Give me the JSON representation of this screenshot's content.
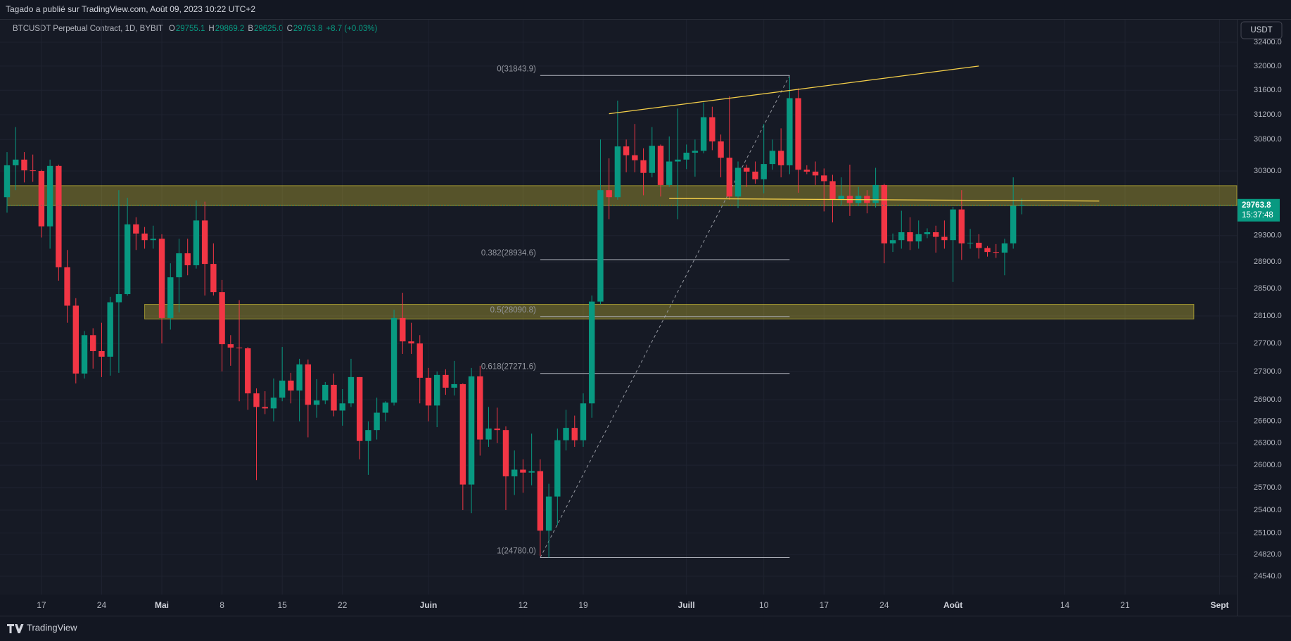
{
  "header": {
    "publisher": "Tagado a publié sur TradingView.com, Août 09, 2023 10:22 UTC+2",
    "symbol": "BTCUSDT Perpetual Contract, 1D, BYBIT",
    "ohlc": [
      {
        "key": "O",
        "value": "29755.1"
      },
      {
        "key": "H",
        "value": "29869.2"
      },
      {
        "key": "B",
        "value": "29625.0"
      },
      {
        "key": "C",
        "value": "29763.8"
      }
    ],
    "change": "+8.7 (+0.03%)",
    "currency": "USDT"
  },
  "footer": {
    "brand": "TradingView"
  },
  "chart_data": {
    "type": "candlestick",
    "log_scale": true,
    "grid": true,
    "up_color": "#089981",
    "down_color": "#f23645",
    "countdown": "15:37:48",
    "xlim": [
      "04-13",
      "09-03"
    ],
    "ylim": [
      24308,
      32781
    ],
    "yticks": [
      {
        "value": 32400,
        "label": "32400.0"
      },
      {
        "value": 32000,
        "label": "32000.0"
      },
      {
        "value": 31600,
        "label": "31600.0"
      },
      {
        "value": 31200,
        "label": "31200.0"
      },
      {
        "value": 30800,
        "label": "30800.0"
      },
      {
        "value": 30300,
        "label": "30300.0"
      },
      {
        "value": 29300,
        "label": "29300.0"
      },
      {
        "value": 28900,
        "label": "28900.0"
      },
      {
        "value": 28500,
        "label": "28500.0"
      },
      {
        "value": 28100,
        "label": "28100.0"
      },
      {
        "value": 27700,
        "label": "27700.0"
      },
      {
        "value": 27300,
        "label": "27300.0"
      },
      {
        "value": 26900,
        "label": "26900.0"
      },
      {
        "value": 26600,
        "label": "26600.0"
      },
      {
        "value": 26300,
        "label": "26300.0"
      },
      {
        "value": 26000,
        "label": "26000.0"
      },
      {
        "value": 25700,
        "label": "25700.0"
      },
      {
        "value": 25400,
        "label": "25400.0"
      },
      {
        "value": 25100,
        "label": "25100.0"
      },
      {
        "value": 24820,
        "label": "24820.0"
      },
      {
        "value": 24540,
        "label": "24540.0"
      }
    ],
    "xticks": [
      {
        "value": "04-17",
        "label": "17"
      },
      {
        "value": "04-24",
        "label": "24"
      },
      {
        "value": "05-01",
        "label": "Mai"
      },
      {
        "value": "05-08",
        "label": "8"
      },
      {
        "value": "05-15",
        "label": "15"
      },
      {
        "value": "05-22",
        "label": "22"
      },
      {
        "value": "06-01",
        "label": "Juin"
      },
      {
        "value": "06-12",
        "label": "12"
      },
      {
        "value": "06-19",
        "label": "19"
      },
      {
        "value": "07-01",
        "label": "Juill"
      },
      {
        "value": "07-10",
        "label": "10"
      },
      {
        "value": "07-17",
        "label": "17"
      },
      {
        "value": "07-24",
        "label": "24"
      },
      {
        "value": "08-01",
        "label": "Août"
      },
      {
        "value": "08-14",
        "label": "14"
      },
      {
        "value": "08-21",
        "label": "21"
      },
      {
        "value": "09-01",
        "label": "Sept"
      }
    ],
    "x": [
      "04-13",
      "04-14",
      "04-15",
      "04-16",
      "04-17",
      "04-18",
      "04-19",
      "04-20",
      "04-21",
      "04-22",
      "04-23",
      "04-24",
      "04-25",
      "04-26",
      "04-27",
      "04-28",
      "04-29",
      "04-30",
      "05-01",
      "05-02",
      "05-03",
      "05-04",
      "05-05",
      "05-06",
      "05-07",
      "05-08",
      "05-09",
      "05-10",
      "05-11",
      "05-12",
      "05-13",
      "05-14",
      "05-15",
      "05-16",
      "05-17",
      "05-18",
      "05-19",
      "05-20",
      "05-21",
      "05-22",
      "05-23",
      "05-24",
      "05-25",
      "05-26",
      "05-27",
      "05-28",
      "05-29",
      "05-30",
      "05-31",
      "06-01",
      "06-02",
      "06-03",
      "06-04",
      "06-05",
      "06-06",
      "06-07",
      "06-08",
      "06-09",
      "06-10",
      "06-11",
      "06-12",
      "06-13",
      "06-14",
      "06-15",
      "06-16",
      "06-17",
      "06-18",
      "06-19",
      "06-20",
      "06-21",
      "06-22",
      "06-23",
      "06-24",
      "06-25",
      "06-26",
      "06-27",
      "06-28",
      "06-29",
      "06-30",
      "07-01",
      "07-02",
      "07-03",
      "07-04",
      "07-05",
      "07-06",
      "07-07",
      "07-08",
      "07-09",
      "07-10",
      "07-11",
      "07-12",
      "07-13",
      "07-14",
      "07-15",
      "07-16",
      "07-17",
      "07-18",
      "07-19",
      "07-20",
      "07-21",
      "07-22",
      "07-23",
      "07-24",
      "07-25",
      "07-26",
      "07-27",
      "07-28",
      "07-29",
      "07-30",
      "07-31",
      "08-01",
      "08-02",
      "08-03",
      "08-04",
      "08-05",
      "08-06",
      "08-07",
      "08-08",
      "08-09"
    ],
    "open": [
      29890,
      30390,
      30480,
      30310,
      30300,
      29440,
      30380,
      28820,
      28250,
      27270,
      27820,
      27590,
      27510,
      28300,
      28420,
      29470,
      29330,
      29230,
      29250,
      28070,
      28670,
      29030,
      28850,
      29530,
      28870,
      28450,
      27690,
      27640,
      27630,
      26990,
      26800,
      26780,
      26930,
      27170,
      27030,
      27400,
      26830,
      26890,
      27110,
      26750,
      26850,
      27220,
      26330,
      26480,
      26720,
      26860,
      28070,
      27730,
      27700,
      27210,
      26820,
      27250,
      27070,
      27120,
      25740,
      27230,
      26350,
      26500,
      26480,
      25850,
      25940,
      25900,
      25920,
      25130,
      25580,
      26340,
      26510,
      26340,
      26850,
      28310,
      30000,
      29890,
      30690,
      30550,
      30470,
      30270,
      30700,
      30080,
      30450,
      30480,
      30590,
      30620,
      31160,
      30770,
      30510,
      29900,
      30350,
      30290,
      30170,
      30410,
      30620,
      30390,
      31470,
      30320,
      30290,
      30230,
      30140,
      29860,
      29910,
      29800,
      29910,
      29800,
      30080,
      29180,
      29230,
      29350,
      29210,
      29320,
      29350,
      29280,
      29230,
      29700,
      29180,
      29190,
      29110,
      29050,
      29040,
      29180,
      29755.1
    ],
    "high": [
      30600,
      31000,
      30600,
      30560,
      30320,
      30480,
      30400,
      29080,
      28360,
      27880,
      27920,
      28000,
      28380,
      30000,
      29880,
      29580,
      29430,
      29450,
      29320,
      28880,
      29250,
      29250,
      29840,
      29820,
      29180,
      28630,
      27820,
      28330,
      27650,
      27060,
      27020,
      27200,
      27650,
      27280,
      27480,
      27470,
      27190,
      27150,
      27270,
      27050,
      27480,
      27220,
      26600,
      26930,
      26880,
      28190,
      28440,
      28000,
      27820,
      27350,
      27300,
      27330,
      27450,
      27130,
      27350,
      27380,
      26800,
      26790,
      26530,
      26200,
      26080,
      26430,
      26080,
      25750,
      26500,
      26760,
      26680,
      26990,
      28400,
      30800,
      30500,
      31430,
      30800,
      31050,
      30660,
      31000,
      30720,
      30850,
      31300,
      30720,
      30800,
      31400,
      31330,
      30880,
      31500,
      30450,
      30400,
      30450,
      31050,
      30800,
      30980,
      31820,
      31630,
      30390,
      30450,
      30340,
      30240,
      30200,
      30400,
      30050,
      30000,
      30350,
      30100,
      29330,
      29680,
      29580,
      29530,
      29410,
      29450,
      29530,
      29740,
      30000,
      29400,
      29320,
      29140,
      29170,
      29250,
      30200,
      29869.2
    ],
    "low": [
      29650,
      30000,
      30120,
      30130,
      29270,
      29100,
      28620,
      28000,
      27130,
      27200,
      27340,
      27220,
      27240,
      27280,
      28400,
      29080,
      29100,
      29100,
      27700,
      27900,
      28150,
      28700,
      28800,
      28400,
      28400,
      27300,
      27380,
      26880,
      26760,
      25800,
      26700,
      26600,
      26880,
      26850,
      26600,
      26380,
      26650,
      26840,
      26670,
      26540,
      26800,
      26080,
      25870,
      26350,
      26600,
      26820,
      27550,
      27550,
      26850,
      26600,
      26520,
      26970,
      26960,
      25400,
      25360,
      26130,
      26250,
      26300,
      25400,
      25600,
      25630,
      25730,
      24800,
      24780,
      25200,
      26200,
      26250,
      26250,
      26650,
      28270,
      29550,
      29850,
      30280,
      30280,
      29920,
      30200,
      29900,
      30050,
      29550,
      30330,
      30210,
      30580,
      30630,
      30200,
      29850,
      29720,
      30050,
      30100,
      29950,
      30320,
      30200,
      30250,
      29960,
      30250,
      30080,
      29670,
      29500,
      29760,
      29600,
      29750,
      29640,
      29730,
      28880,
      29050,
      29100,
      29080,
      29100,
      29260,
      29040,
      29100,
      28600,
      28930,
      29100,
      28950,
      28980,
      28960,
      28700,
      29100,
      29625
    ],
    "close": [
      30390,
      30480,
      30310,
      30300,
      29440,
      30380,
      28820,
      28250,
      27270,
      27820,
      27590,
      27510,
      28300,
      28420,
      29470,
      29330,
      29230,
      29250,
      28070,
      28670,
      29030,
      28850,
      29530,
      28870,
      28450,
      27690,
      27640,
      27630,
      26990,
      26800,
      26780,
      26930,
      27170,
      27030,
      27400,
      26830,
      26890,
      27110,
      26750,
      26850,
      27220,
      26330,
      26480,
      26720,
      26860,
      28070,
      27730,
      27700,
      27210,
      26820,
      27250,
      27070,
      27120,
      25740,
      27230,
      26350,
      26500,
      26480,
      25850,
      25940,
      25900,
      25920,
      25130,
      25580,
      26340,
      26510,
      26340,
      26850,
      28310,
      30000,
      29890,
      30690,
      30550,
      30470,
      30270,
      30700,
      30080,
      30450,
      30480,
      30590,
      30620,
      31160,
      30770,
      30510,
      29900,
      30350,
      30290,
      30170,
      30410,
      30620,
      30390,
      31470,
      30320,
      30290,
      30230,
      30140,
      29860,
      29910,
      29800,
      29910,
      29800,
      30080,
      29180,
      29230,
      29350,
      29210,
      29320,
      29350,
      29280,
      29230,
      29700,
      29180,
      29190,
      29110,
      29050,
      29040,
      29180,
      29755.1,
      29763.8
    ],
    "zones": [
      {
        "from": "04-13",
        "to": "09-03",
        "low": 29760,
        "high": 30070,
        "color": "#ffeb3b"
      },
      {
        "from": "04-29",
        "to": "08-29",
        "low": 28055,
        "high": 28270,
        "color": "#ffeb3b"
      }
    ],
    "trendlines": [
      {
        "x": [
          "06-22",
          "08-04"
        ],
        "y": [
          31216,
          32000
        ],
        "color": "#f7d14a"
      },
      {
        "x": [
          "06-29",
          "08-18"
        ],
        "y": [
          29870,
          29830
        ],
        "color": "#f7d14a"
      }
    ],
    "fib": {
      "x": [
        "06-14",
        "07-13"
      ],
      "levels": [
        {
          "value": 31843.9,
          "label": "0(31843.9)"
        },
        {
          "value": 28934.6,
          "label": "0.382(28934.6)"
        },
        {
          "value": 28090.8,
          "label": "0.5(28090.8)"
        },
        {
          "value": 27271.6,
          "label": "0.618(27271.6)"
        },
        {
          "value": 24780.0,
          "label": "1(24780.0)"
        }
      ]
    }
  }
}
